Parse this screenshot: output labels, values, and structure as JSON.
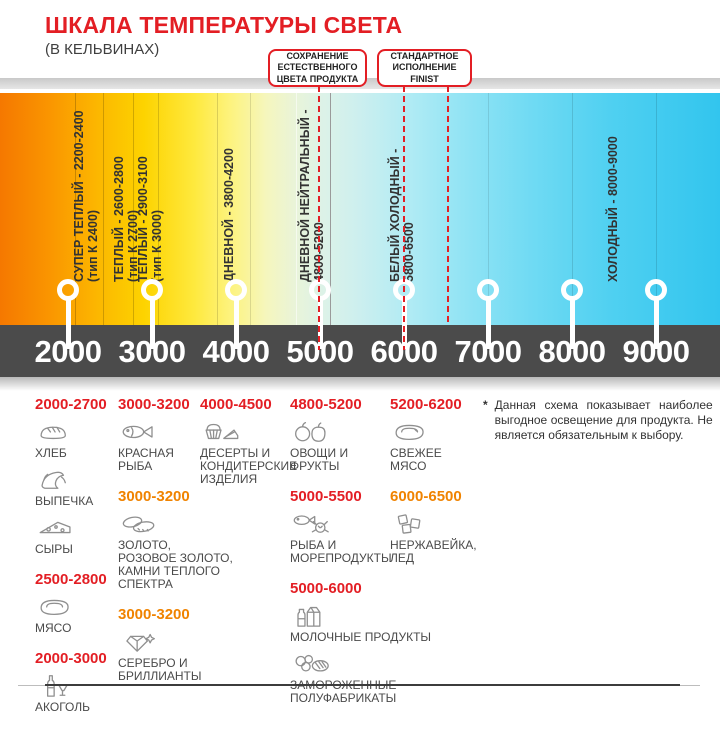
{
  "title": "ШКАЛА ТЕМПЕРАТУРЫ СВЕТА",
  "subtitle": "(В КЕЛЬВИНАХ)",
  "colors": {
    "accent_red": "#e31e24",
    "accent_orange": "#f08300",
    "axis_bar": "#4b4b4b",
    "label_text": "#333333"
  },
  "callouts": [
    {
      "id": "preserve-color",
      "lines": [
        "СОХРАНЕНИЕ",
        "ЕСТЕСТВЕННОГО",
        "ЦВЕТА ПРОДУКТА"
      ]
    },
    {
      "id": "standard-finist",
      "lines": [
        "СТАНДАРТНОЕ",
        "ИСПОЛНЕНИЕ",
        "FINIST"
      ]
    }
  ],
  "scale": {
    "ticks": [
      "2000",
      "3000",
      "4000",
      "5000",
      "6000",
      "7000",
      "8000",
      "9000"
    ],
    "segments": [
      {
        "label": "СУПЕР ТЕПЛЫЙ  - 2200-2400",
        "sub": "(тип К 2400)"
      },
      {
        "label": "ТЕПЛЫЙ - 2600-2800",
        "sub": "(тип К 2700)"
      },
      {
        "label": "ТЕПЛЫЙ - 2900-3100",
        "sub": "(тип К 3000)"
      },
      {
        "label": "ДНЕВНОЙ -  3800-4200",
        "sub": ""
      },
      {
        "label": "ДНЕВНОЙ НЕЙТРАЛЬНЫЙ -",
        "sub": "4800-5200"
      },
      {
        "label": "БЕЛЫЙ ХОЛОДНЫЙ -",
        "sub": "5800-6500"
      },
      {
        "label": "ХОЛОДНЫЙ  - 8000-9000",
        "sub": ""
      }
    ]
  },
  "products": {
    "columns": [
      {
        "groups": [
          {
            "range": "2000-2700",
            "color": "red",
            "items": [
              {
                "icon": "bread",
                "label": "ХЛЕБ"
              },
              {
                "icon": "croissant",
                "label": "ВЫПЕЧКА"
              },
              {
                "icon": "cheese",
                "label": "СЫРЫ"
              }
            ]
          },
          {
            "range": "2500-2800",
            "color": "red",
            "items": [
              {
                "icon": "meat",
                "label": "МЯСО"
              }
            ]
          },
          {
            "range": "2000-3000",
            "color": "red",
            "items": [
              {
                "icon": "alcohol",
                "label": "АКОГОЛЬ"
              }
            ]
          }
        ]
      },
      {
        "groups": [
          {
            "range": "3000-3200",
            "color": "red",
            "items": [
              {
                "icon": "fish",
                "label": "КРАСНАЯ\nРЫБА"
              }
            ]
          },
          {
            "range": "3000-3200",
            "color": "orange",
            "items": [
              {
                "icon": "rings",
                "label": "ЗОЛОТО,\nРОЗОВОЕ ЗОЛОТО,\nКАМНИ ТЕПЛОГО\nСПЕКТРА"
              }
            ]
          },
          {
            "range": "3000-3200",
            "color": "orange",
            "items": [
              {
                "icon": "diamond",
                "label": "СЕРЕБРО И\nБРИЛЛИАНТЫ"
              }
            ]
          }
        ]
      },
      {
        "groups": [
          {
            "range": "4000-4500",
            "color": "red",
            "items": [
              {
                "icon": "desserts",
                "label": "ДЕСЕРТЫ И\nКОНДИТЕРСКИЕ\nИЗДЕЛИЯ"
              }
            ]
          }
        ]
      },
      {
        "groups": [
          {
            "range": "4800-5200",
            "color": "red",
            "items": [
              {
                "icon": "fruits",
                "label": "ОВОЩИ И\nФРУКТЫ"
              }
            ]
          },
          {
            "range": "5000-5500",
            "color": "red",
            "items": [
              {
                "icon": "seafood",
                "label": "РЫБА И\nМОРЕПРОДУКТЫ"
              }
            ]
          },
          {
            "range": "5000-6000",
            "color": "red",
            "items": [
              {
                "icon": "dairy",
                "label": "МОЛОЧНЫЕ ПРОДУКТЫ"
              },
              {
                "icon": "frozen",
                "label": "ЗАМОРОЖЕННЫЕ\nПОЛУФАБРИКАТЫ"
              }
            ]
          }
        ]
      },
      {
        "groups": [
          {
            "range": "5200-6200",
            "color": "red",
            "items": [
              {
                "icon": "fresh-meat",
                "label": "СВЕЖЕЕ\nМЯСО"
              }
            ]
          },
          {
            "range": "6000-6500",
            "color": "orange",
            "items": [
              {
                "icon": "ice",
                "label": "НЕРЖАВЕЙКА,\nЛЕД"
              }
            ]
          }
        ]
      }
    ]
  },
  "note": {
    "mark": "*",
    "text": "Данная схема показывает наиболее выгодное освещение для продукта. Не является обязательным к выбору."
  }
}
